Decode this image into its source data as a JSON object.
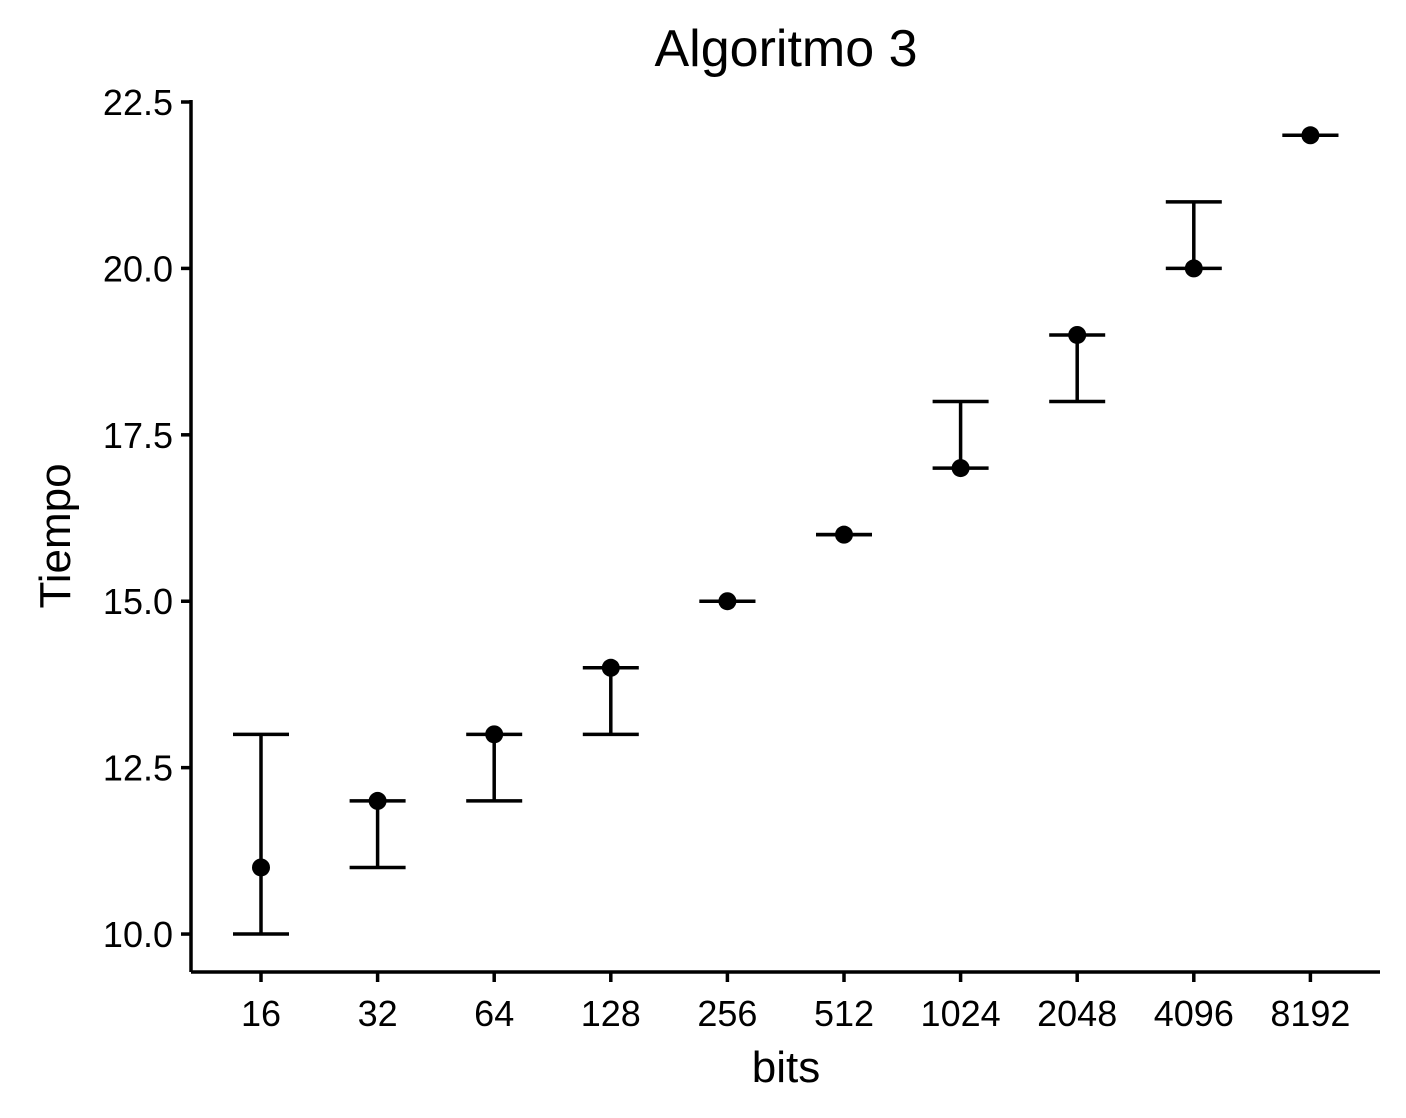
{
  "chart_data": {
    "type": "scatter",
    "title": "Algoritmo 3",
    "xlabel": "bits",
    "ylabel": "Tiempo",
    "categories": [
      "16",
      "32",
      "64",
      "128",
      "256",
      "512",
      "1024",
      "2048",
      "4096",
      "8192"
    ],
    "values": [
      11,
      12,
      13,
      14,
      15,
      16,
      17,
      19,
      20,
      22
    ],
    "error_low": [
      10,
      11,
      12,
      13,
      15,
      16,
      17,
      18,
      20,
      22
    ],
    "error_high": [
      13,
      12,
      13,
      14,
      15,
      16,
      18,
      19,
      21,
      22
    ],
    "ylim": [
      9.43,
      22.53
    ],
    "yticks": [
      "10.0",
      "12.5",
      "15.0",
      "17.5",
      "20.0",
      "22.5"
    ],
    "grid": false,
    "legend": "none"
  }
}
